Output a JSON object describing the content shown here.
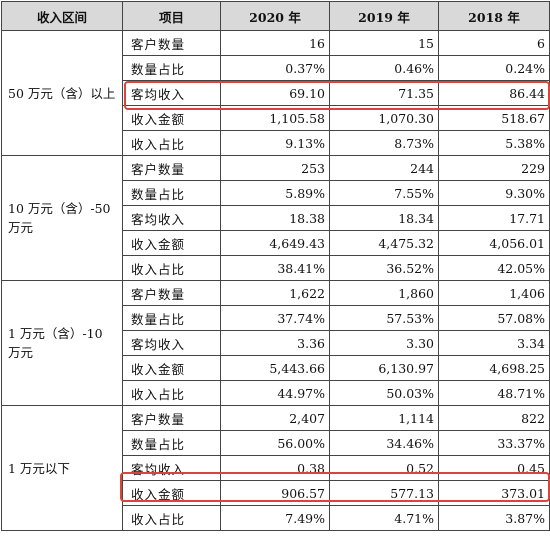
{
  "header": {
    "range": "收入区间",
    "item": "项目",
    "y2020": "2020 年",
    "y2019": "2019 年",
    "y2018": "2018 年"
  },
  "groups": [
    {
      "range": "50 万元（含）以上",
      "rows": [
        {
          "item": "客户数量",
          "v2020": "16",
          "v2019": "15",
          "v2018": "6"
        },
        {
          "item": "数量占比",
          "v2020": "0.37%",
          "v2019": "0.46%",
          "v2018": "0.24%"
        },
        {
          "item": "客均收入",
          "v2020": "69.10",
          "v2019": "71.35",
          "v2018": "86.44"
        },
        {
          "item": "收入金额",
          "v2020": "1,105.58",
          "v2019": "1,070.30",
          "v2018": "518.67"
        },
        {
          "item": "收入占比",
          "v2020": "9.13%",
          "v2019": "8.73%",
          "v2018": "5.38%"
        }
      ]
    },
    {
      "range": "10 万元（含）-50 万元",
      "rows": [
        {
          "item": "客户数量",
          "v2020": "253",
          "v2019": "244",
          "v2018": "229"
        },
        {
          "item": "数量占比",
          "v2020": "5.89%",
          "v2019": "7.55%",
          "v2018": "9.30%"
        },
        {
          "item": "客均收入",
          "v2020": "18.38",
          "v2019": "18.34",
          "v2018": "17.71"
        },
        {
          "item": "收入金额",
          "v2020": "4,649.43",
          "v2019": "4,475.32",
          "v2018": "4,056.01"
        },
        {
          "item": "收入占比",
          "v2020": "38.41%",
          "v2019": "36.52%",
          "v2018": "42.05%"
        }
      ]
    },
    {
      "range": "1 万元（含）-10 万元",
      "rows": [
        {
          "item": "客户数量",
          "v2020": "1,622",
          "v2019": "1,860",
          "v2018": "1,406"
        },
        {
          "item": "数量占比",
          "v2020": "37.74%",
          "v2019": "57.53%",
          "v2018": "57.08%"
        },
        {
          "item": "客均收入",
          "v2020": "3.36",
          "v2019": "3.30",
          "v2018": "3.34"
        },
        {
          "item": "收入金额",
          "v2020": "5,443.66",
          "v2019": "6,130.97",
          "v2018": "4,698.25"
        },
        {
          "item": "收入占比",
          "v2020": "44.97%",
          "v2019": "50.03%",
          "v2018": "48.71%"
        }
      ]
    },
    {
      "range": "1 万元以下",
      "rows": [
        {
          "item": "客户数量",
          "v2020": "2,407",
          "v2019": "1,114",
          "v2018": "822"
        },
        {
          "item": "数量占比",
          "v2020": "56.00%",
          "v2019": "34.46%",
          "v2018": "33.37%"
        },
        {
          "item": "客均收入",
          "v2020": "0.38",
          "v2019": "0.52",
          "v2018": "0.45"
        },
        {
          "item": "收入金额",
          "v2020": "906.57",
          "v2019": "577.13",
          "v2018": "373.01"
        },
        {
          "item": "收入占比",
          "v2020": "7.49%",
          "v2019": "4.71%",
          "v2018": "3.87%"
        }
      ]
    }
  ],
  "highlight_color": "#d9453a"
}
